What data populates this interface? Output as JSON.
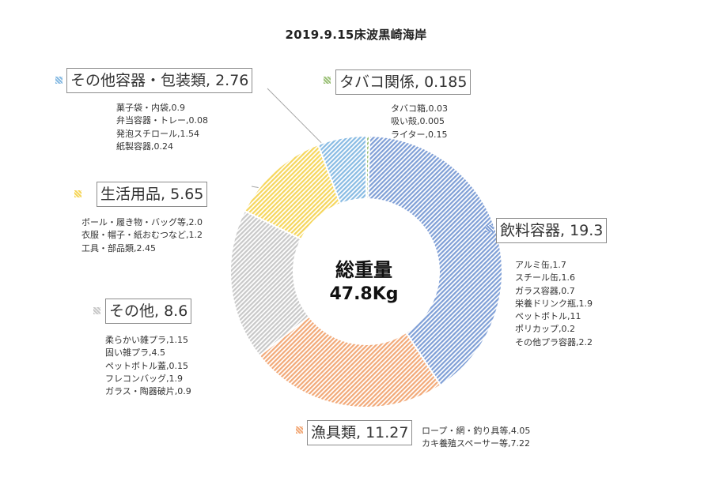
{
  "chart_data": {
    "type": "pie",
    "title": "2019.9.15床波黒崎海岸",
    "center_label": "総重量",
    "center_value": "47.8Kg",
    "slices": [
      {
        "name": "タバコ関係",
        "value": 0.185,
        "label": "タバコ関係, 0.185",
        "color": "#9dc27a",
        "details": [
          "タバコ箱,0.03",
          "吸い殻,0.005",
          "ライター,0.15"
        ]
      },
      {
        "name": "飲料容器",
        "value": 19.3,
        "label": "飲料容器, 19.3",
        "color": "#7f9fd6",
        "details": [
          "アルミ缶,1.7",
          "スチール缶,1.6",
          "ガラス容器,0.7",
          "栄養ドリンク瓶,1.9",
          "ペットボトル,11",
          "ポリカップ,0.2",
          "その他プラ容器,2.2"
        ]
      },
      {
        "name": "漁具類",
        "value": 11.27,
        "label": "漁具類, 11.27",
        "color": "#f2a978",
        "details": [
          "ロープ・網・釣り具等,4.05",
          "カキ養殖スペーサー等,7.22"
        ]
      },
      {
        "name": "その他",
        "value": 8.6,
        "label": "その他, 8.6",
        "color": "#c8c8c8",
        "details": [
          "柔らかい雑プラ,1.15",
          "固い雑プラ,4.5",
          "ペットボトル蓋,0.15",
          "フレコンバッグ,1.9",
          "ガラス・陶器破片,0.9"
        ]
      },
      {
        "name": "生活用品",
        "value": 5.65,
        "label": "生活用品, 5.65",
        "color": "#f5d65c",
        "details": [
          "ボール・履き物・バッグ等,2.0",
          "衣服・帽子・紙おむつなど,1.2",
          "工具・部品類,2.45"
        ]
      },
      {
        "name": "その他容器・包装類",
        "value": 2.76,
        "label": "その他容器・包装類, 2.76",
        "color": "#88bbe3",
        "details": [
          "菓子袋・内袋,0.9",
          "弁当容器・トレー,0.08",
          "発泡スチロール,1.54",
          "紙製容器,0.24"
        ]
      }
    ]
  }
}
